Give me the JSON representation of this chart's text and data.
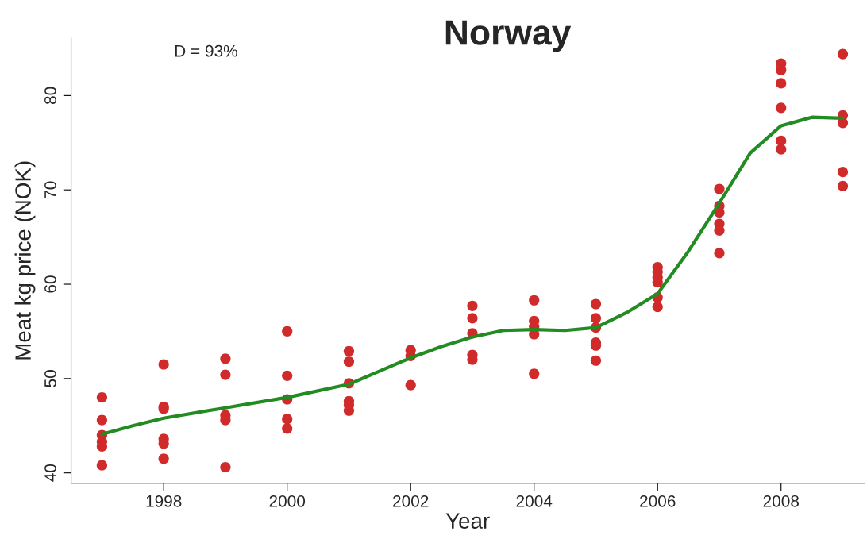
{
  "chart_data": {
    "type": "scatter",
    "title": "Norway",
    "xlabel": "Year",
    "ylabel": "Meat kg price (NOK)",
    "annotations": [
      "D = 93%"
    ],
    "xlim": [
      1996.5,
      2009.35
    ],
    "ylim": [
      38.9,
      86.1
    ],
    "xticks": [
      1998,
      2000,
      2002,
      2004,
      2006,
      2008
    ],
    "yticks": [
      40,
      50,
      60,
      70,
      80
    ],
    "grid": false,
    "marker": "circle",
    "series": [
      {
        "color": "#d02a2a",
        "x": [
          1997,
          1997,
          1997,
          1997,
          1997,
          1997,
          1998,
          1998,
          1998,
          1998,
          1998,
          1998,
          1999,
          1999,
          1999,
          1999,
          1999,
          2000,
          2000,
          2000,
          2000,
          2000,
          2001,
          2001,
          2001,
          2001,
          2001,
          2001,
          2002,
          2002,
          2002,
          2003,
          2003,
          2003,
          2003,
          2003,
          2004,
          2004,
          2004,
          2004,
          2004,
          2005,
          2005,
          2005,
          2005,
          2005,
          2005,
          2006,
          2006,
          2006,
          2006,
          2006,
          2006,
          2007,
          2007,
          2007,
          2007,
          2007,
          2007,
          2008,
          2008,
          2008,
          2008,
          2008,
          2008,
          2009,
          2009,
          2009,
          2009,
          2009
        ],
        "values": [
          48.0,
          45.6,
          44.0,
          43.3,
          42.8,
          40.8,
          51.5,
          47.0,
          46.8,
          43.6,
          43.1,
          41.5,
          52.1,
          50.4,
          46.1,
          45.6,
          40.6,
          55.0,
          50.3,
          47.8,
          45.7,
          44.7,
          52.9,
          51.8,
          49.5,
          47.6,
          47.2,
          46.6,
          53.0,
          52.4,
          49.3,
          57.7,
          56.4,
          54.8,
          52.5,
          52.0,
          58.3,
          56.1,
          55.5,
          54.7,
          50.5,
          57.9,
          56.4,
          55.4,
          53.8,
          53.5,
          51.9,
          61.8,
          61.3,
          60.7,
          60.2,
          58.6,
          57.6,
          70.1,
          68.3,
          67.6,
          66.4,
          65.7,
          63.3,
          83.4,
          82.7,
          81.3,
          78.7,
          75.2,
          74.3,
          84.4,
          77.9,
          77.1,
          71.9,
          70.4
        ]
      },
      {
        "type": "line",
        "color": "#228b22",
        "marker": "none",
        "line_style": "solid",
        "x": [
          1997,
          1997.5,
          1998,
          1999,
          2000,
          2001,
          2001.5,
          2002,
          2002.5,
          2003,
          2003.5,
          2004,
          2004.5,
          2005,
          2005.5,
          2006,
          2006.5,
          2007,
          2007.5,
          2008,
          2008.5,
          2009
        ],
        "values": [
          44.1,
          45.0,
          45.8,
          46.9,
          48.0,
          49.4,
          50.8,
          52.2,
          53.4,
          54.4,
          55.1,
          55.2,
          55.1,
          55.4,
          57.0,
          59.0,
          63.5,
          68.6,
          73.9,
          76.8,
          77.7,
          77.6
        ]
      }
    ]
  }
}
